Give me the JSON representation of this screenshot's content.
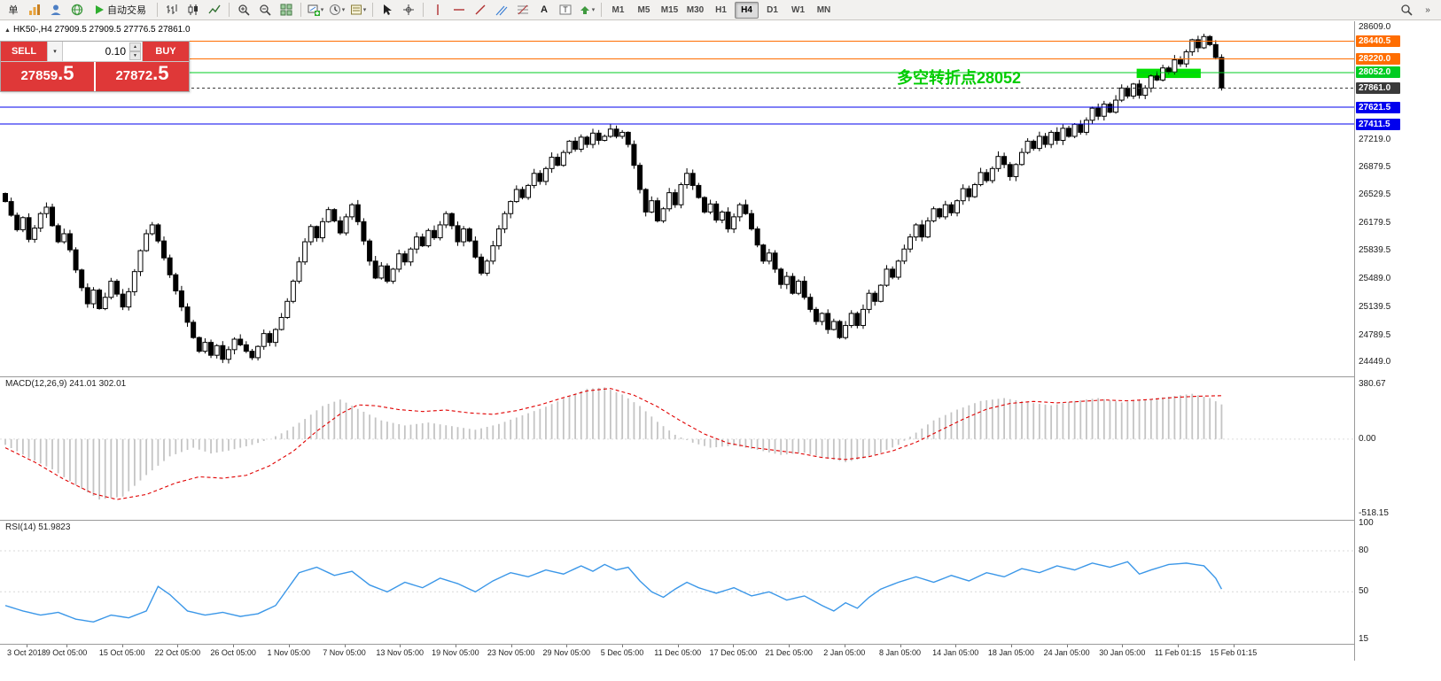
{
  "icons": {
    "caret_down": "▾",
    "spinner_up": "▲",
    "spinner_down": "▼",
    "collapse_marker": "▲",
    "overflow": "»"
  },
  "toolbar": {
    "new_order_label": "单",
    "autotrading_label": "自动交易",
    "timeframes": [
      "M1",
      "M5",
      "M15",
      "M30",
      "H1",
      "H4",
      "D1",
      "W1",
      "MN"
    ],
    "active_timeframe": "H4"
  },
  "trade_panel": {
    "sell_label": "SELL",
    "buy_label": "BUY",
    "volume": "0.10",
    "sell_price_main": "27859",
    "sell_price_pip": ".5",
    "buy_price_main": "27872",
    "buy_price_pip": ".5"
  },
  "chart": {
    "title": "HK50-,H4 27909.5 27909.5 27776.5 27861.0",
    "symbol": "HK50-",
    "period": "H4",
    "annotation_text": "多空转折点28052",
    "annotation_color": "#00cc00",
    "levels": [
      {
        "label": "28440.5",
        "price": 28440.5,
        "color": "#ff6d00",
        "style": "solid"
      },
      {
        "label": "28220.0",
        "price": 28220.0,
        "color": "#ff6d00",
        "style": "solid"
      },
      {
        "label": "28052.0",
        "price": 28052.0,
        "color": "#00cc22",
        "style": "solid"
      },
      {
        "label": "27861.0",
        "price": 27861.0,
        "color": "#3a3a3a",
        "style": "dashed"
      },
      {
        "label": "27621.5",
        "price": 27621.5,
        "color": "#0000ee",
        "style": "solid"
      },
      {
        "label": "27411.5",
        "price": 27411.5,
        "color": "#0000ee",
        "style": "solid"
      }
    ],
    "price_ticks": [
      {
        "label": "28609.0",
        "price": 28609.0
      },
      {
        "label": "27219.0",
        "price": 27219.0
      },
      {
        "label": "26879.5",
        "price": 26879.5
      },
      {
        "label": "26529.5",
        "price": 26529.5
      },
      {
        "label": "26179.5",
        "price": 26179.5
      },
      {
        "label": "25839.5",
        "price": 25839.5
      },
      {
        "label": "25489.0",
        "price": 25489.0
      },
      {
        "label": "25139.5",
        "price": 25139.5
      },
      {
        "label": "24789.5",
        "price": 24789.5
      },
      {
        "label": "24449.0",
        "price": 24449.0
      }
    ],
    "highlight_zone": {
      "from_index": 193,
      "to_index": 203,
      "price_top": 28100,
      "price_bottom": 27985,
      "color": "#00e000"
    }
  },
  "macd": {
    "label": "MACD(12,26,9) 241.01 302.01",
    "axis_max_label": "380.67",
    "axis_zero_label": "0.00",
    "axis_min_label": "-518.15",
    "axis_max": 380.67,
    "axis_min": -518.15
  },
  "rsi": {
    "label": "RSI(14) 51.9823",
    "axis_levels": [
      "100",
      "80",
      "50",
      "15"
    ]
  },
  "time_axis": [
    "3 Oct 2018",
    "9 Oct 05:00",
    "15 Oct 05:00",
    "22 Oct 05:00",
    "26 Oct 05:00",
    "1 Nov 05:00",
    "7 Nov 05:00",
    "13 Nov 05:00",
    "19 Nov 05:00",
    "23 Nov 05:00",
    "29 Nov 05:00",
    "5 Dec 05:00",
    "11 Dec 05:00",
    "17 Dec 05:00",
    "21 Dec 05:00",
    "2 Jan 05:00",
    "8 Jan 05:00",
    "14 Jan 05:00",
    "18 Jan 05:00",
    "24 Jan 05:00",
    "30 Jan 05:00",
    "11 Feb 01:15",
    "15 Feb 01:15"
  ],
  "chart_data": [
    {
      "type": "candlestick",
      "symbol": "HK50-",
      "timeframe": "H4",
      "title": "HK50-,H4",
      "ylim": [
        24278,
        28690
      ],
      "ohlc_current": {
        "open": 27909.5,
        "high": 27909.5,
        "low": 27776.5,
        "close": 27861.0
      },
      "first_open": 26550,
      "closes": [
        26450,
        26280,
        26100,
        26250,
        25980,
        26120,
        26300,
        26380,
        26150,
        25950,
        26050,
        25850,
        25600,
        25380,
        25180,
        25350,
        25120,
        25260,
        25460,
        25300,
        25140,
        25330,
        25580,
        25840,
        26050,
        26160,
        25960,
        25750,
        25540,
        25340,
        25140,
        24950,
        24760,
        24590,
        24700,
        24540,
        24660,
        24490,
        24610,
        24740,
        24670,
        24590,
        24510,
        24650,
        24810,
        24700,
        24860,
        25010,
        25210,
        25460,
        25700,
        25950,
        26140,
        26000,
        26200,
        26350,
        26210,
        26060,
        26260,
        26410,
        26200,
        25960,
        25710,
        25500,
        25650,
        25460,
        25610,
        25800,
        25700,
        25860,
        26010,
        25900,
        26090,
        26000,
        26160,
        26300,
        26150,
        25950,
        26110,
        25960,
        25760,
        25560,
        25710,
        25900,
        26110,
        26300,
        26450,
        26600,
        26500,
        26650,
        26800,
        26700,
        26860,
        27000,
        26900,
        27060,
        27200,
        27100,
        27250,
        27160,
        27300,
        27210,
        27260,
        27350,
        27260,
        27310,
        27160,
        26900,
        26600,
        26320,
        26460,
        26210,
        26360,
        26560,
        26410,
        26660,
        26800,
        26650,
        26500,
        26320,
        26420,
        26220,
        26320,
        26110,
        26260,
        26410,
        26300,
        26110,
        25910,
        25710,
        25810,
        25610,
        25420,
        25520,
        25310,
        25460,
        25260,
        25110,
        24960,
        25060,
        24860,
        24960,
        24760,
        24910,
        25060,
        24910,
        25110,
        25310,
        25210,
        25410,
        25610,
        25510,
        25710,
        25860,
        26010,
        26160,
        26010,
        26210,
        26360,
        26260,
        26410,
        26310,
        26460,
        26610,
        26510,
        26660,
        26810,
        26710,
        26860,
        27010,
        26910,
        26760,
        26910,
        27060,
        27200,
        27110,
        27260,
        27160,
        27310,
        27210,
        27360,
        27260,
        27410,
        27310,
        27460,
        27610,
        27510,
        27660,
        27560,
        27710,
        27860,
        27760,
        27910,
        27770,
        27860,
        28010,
        27960,
        28110,
        28060,
        28210,
        28160,
        28310,
        28460,
        28360,
        28500,
        28400,
        28240,
        27861
      ]
    },
    {
      "type": "bar",
      "name": "MACD histogram",
      "current_value": 241.01,
      "ylim": [
        -518.15,
        380.67
      ],
      "points": [
        [
          0,
          -40
        ],
        [
          4,
          -130
        ],
        [
          8,
          -210
        ],
        [
          12,
          -320
        ],
        [
          16,
          -420
        ],
        [
          20,
          -400
        ],
        [
          24,
          -250
        ],
        [
          28,
          -120
        ],
        [
          32,
          -60
        ],
        [
          35,
          -100
        ],
        [
          38,
          -80
        ],
        [
          42,
          -40
        ],
        [
          45,
          0
        ],
        [
          48,
          60
        ],
        [
          51,
          140
        ],
        [
          54,
          230
        ],
        [
          57,
          275
        ],
        [
          60,
          210
        ],
        [
          64,
          130
        ],
        [
          68,
          95
        ],
        [
          72,
          115
        ],
        [
          76,
          90
        ],
        [
          80,
          65
        ],
        [
          84,
          105
        ],
        [
          88,
          165
        ],
        [
          92,
          225
        ],
        [
          96,
          300
        ],
        [
          99,
          350
        ],
        [
          102,
          360
        ],
        [
          105,
          310
        ],
        [
          108,
          230
        ],
        [
          111,
          120
        ],
        [
          114,
          30
        ],
        [
          117,
          -25
        ],
        [
          120,
          -60
        ],
        [
          124,
          -45
        ],
        [
          128,
          -75
        ],
        [
          132,
          -110
        ],
        [
          136,
          -95
        ],
        [
          140,
          -135
        ],
        [
          143,
          -160
        ],
        [
          146,
          -135
        ],
        [
          149,
          -95
        ],
        [
          152,
          -40
        ],
        [
          155,
          45
        ],
        [
          158,
          130
        ],
        [
          162,
          205
        ],
        [
          166,
          265
        ],
        [
          170,
          285
        ],
        [
          174,
          255
        ],
        [
          178,
          235
        ],
        [
          182,
          265
        ],
        [
          186,
          285
        ],
        [
          190,
          255
        ],
        [
          194,
          275
        ],
        [
          198,
          295
        ],
        [
          202,
          315
        ],
        [
          205,
          285
        ],
        [
          207,
          241
        ]
      ]
    },
    {
      "type": "line",
      "name": "MACD signal",
      "current_value": 302.01,
      "color": "#e00000",
      "points": [
        [
          0,
          -60
        ],
        [
          5,
          -160
        ],
        [
          10,
          -280
        ],
        [
          15,
          -380
        ],
        [
          19,
          -420
        ],
        [
          24,
          -385
        ],
        [
          29,
          -305
        ],
        [
          33,
          -262
        ],
        [
          37,
          -272
        ],
        [
          41,
          -252
        ],
        [
          45,
          -185
        ],
        [
          49,
          -85
        ],
        [
          53,
          55
        ],
        [
          57,
          175
        ],
        [
          60,
          238
        ],
        [
          63,
          232
        ],
        [
          67,
          205
        ],
        [
          71,
          192
        ],
        [
          75,
          202
        ],
        [
          79,
          182
        ],
        [
          83,
          172
        ],
        [
          87,
          198
        ],
        [
          91,
          238
        ],
        [
          95,
          288
        ],
        [
          99,
          335
        ],
        [
          103,
          352
        ],
        [
          107,
          305
        ],
        [
          111,
          225
        ],
        [
          115,
          125
        ],
        [
          119,
          35
        ],
        [
          123,
          -28
        ],
        [
          127,
          -58
        ],
        [
          131,
          -78
        ],
        [
          135,
          -98
        ],
        [
          139,
          -128
        ],
        [
          143,
          -142
        ],
        [
          147,
          -122
        ],
        [
          151,
          -82
        ],
        [
          155,
          -22
        ],
        [
          159,
          58
        ],
        [
          163,
          138
        ],
        [
          167,
          208
        ],
        [
          171,
          248
        ],
        [
          175,
          262
        ],
        [
          179,
          252
        ],
        [
          183,
          262
        ],
        [
          187,
          272
        ],
        [
          191,
          266
        ],
        [
          195,
          276
        ],
        [
          199,
          290
        ],
        [
          203,
          298
        ],
        [
          207,
          302
        ]
      ]
    },
    {
      "type": "line",
      "name": "RSI(14)",
      "current_value": 51.9823,
      "color": "#3b97e8",
      "ylim": [
        0,
        100
      ],
      "points": [
        [
          0,
          40
        ],
        [
          3,
          36
        ],
        [
          6,
          33
        ],
        [
          9,
          35
        ],
        [
          12,
          30
        ],
        [
          15,
          28
        ],
        [
          18,
          33
        ],
        [
          21,
          31
        ],
        [
          24,
          36
        ],
        [
          26,
          54
        ],
        [
          28,
          48
        ],
        [
          31,
          36
        ],
        [
          34,
          33
        ],
        [
          37,
          35
        ],
        [
          40,
          32
        ],
        [
          43,
          34
        ],
        [
          46,
          40
        ],
        [
          48,
          52
        ],
        [
          50,
          64
        ],
        [
          53,
          68
        ],
        [
          56,
          62
        ],
        [
          59,
          65
        ],
        [
          62,
          55
        ],
        [
          65,
          50
        ],
        [
          68,
          57
        ],
        [
          71,
          53
        ],
        [
          74,
          60
        ],
        [
          77,
          56
        ],
        [
          80,
          50
        ],
        [
          83,
          58
        ],
        [
          86,
          64
        ],
        [
          89,
          61
        ],
        [
          92,
          66
        ],
        [
          95,
          63
        ],
        [
          98,
          69
        ],
        [
          100,
          65
        ],
        [
          102,
          70
        ],
        [
          104,
          66
        ],
        [
          106,
          68
        ],
        [
          108,
          58
        ],
        [
          110,
          50
        ],
        [
          112,
          46
        ],
        [
          114,
          52
        ],
        [
          116,
          57
        ],
        [
          118,
          53
        ],
        [
          121,
          49
        ],
        [
          124,
          53
        ],
        [
          127,
          47
        ],
        [
          130,
          50
        ],
        [
          133,
          44
        ],
        [
          136,
          47
        ],
        [
          139,
          40
        ],
        [
          141,
          36
        ],
        [
          143,
          42
        ],
        [
          145,
          38
        ],
        [
          147,
          46
        ],
        [
          149,
          52
        ],
        [
          152,
          57
        ],
        [
          155,
          61
        ],
        [
          158,
          57
        ],
        [
          161,
          62
        ],
        [
          164,
          58
        ],
        [
          167,
          64
        ],
        [
          170,
          61
        ],
        [
          173,
          67
        ],
        [
          176,
          64
        ],
        [
          179,
          69
        ],
        [
          182,
          66
        ],
        [
          185,
          71
        ],
        [
          188,
          68
        ],
        [
          191,
          72
        ],
        [
          193,
          63
        ],
        [
          195,
          66
        ],
        [
          198,
          70
        ],
        [
          201,
          71
        ],
        [
          204,
          69
        ],
        [
          206,
          60
        ],
        [
          207,
          52
        ]
      ]
    }
  ]
}
